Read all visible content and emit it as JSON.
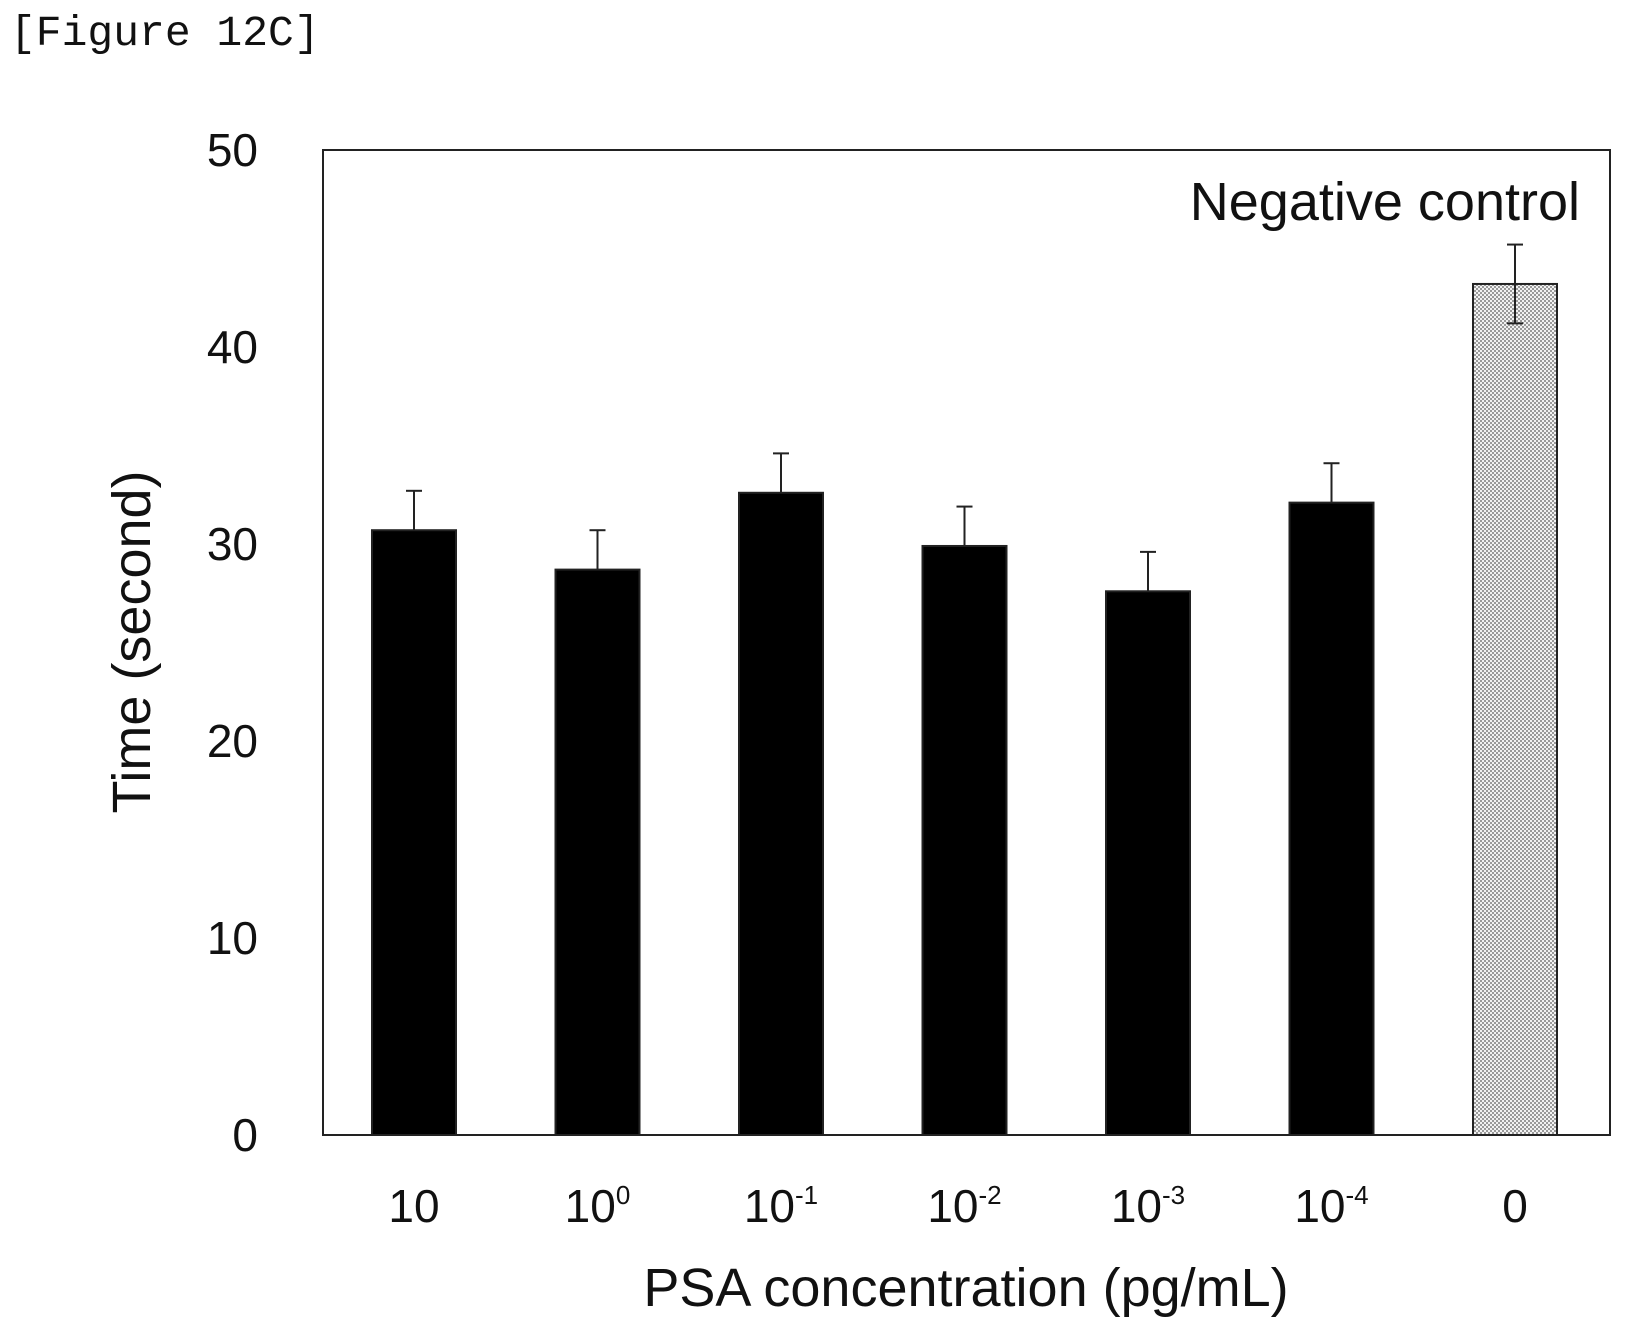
{
  "figure_label": "[Figure 12C]",
  "chart_data": {
    "type": "bar",
    "categories": [
      {
        "base": "10",
        "exp": ""
      },
      {
        "base": "10",
        "exp": "0"
      },
      {
        "base": "10",
        "exp": "-1"
      },
      {
        "base": "10",
        "exp": "-2"
      },
      {
        "base": "10",
        "exp": "-3"
      },
      {
        "base": "10",
        "exp": "-4"
      },
      {
        "base": "0",
        "exp": ""
      }
    ],
    "values": [
      30.7,
      28.7,
      32.6,
      29.9,
      27.6,
      32.1,
      43.2
    ],
    "errors": [
      2.0,
      2.0,
      2.0,
      2.0,
      2.0,
      2.0,
      2.0
    ],
    "bar_colors": [
      "#000000",
      "#000000",
      "#000000",
      "#000000",
      "#000000",
      "#000000",
      "#cccccc"
    ],
    "xlabel": "PSA concentration (pg/mL)",
    "ylabel": "Time (second)",
    "ylim": [
      0,
      50
    ],
    "yticks": [
      0,
      10,
      20,
      30,
      40,
      50
    ],
    "annotation": "Negative control",
    "grid": false
  }
}
